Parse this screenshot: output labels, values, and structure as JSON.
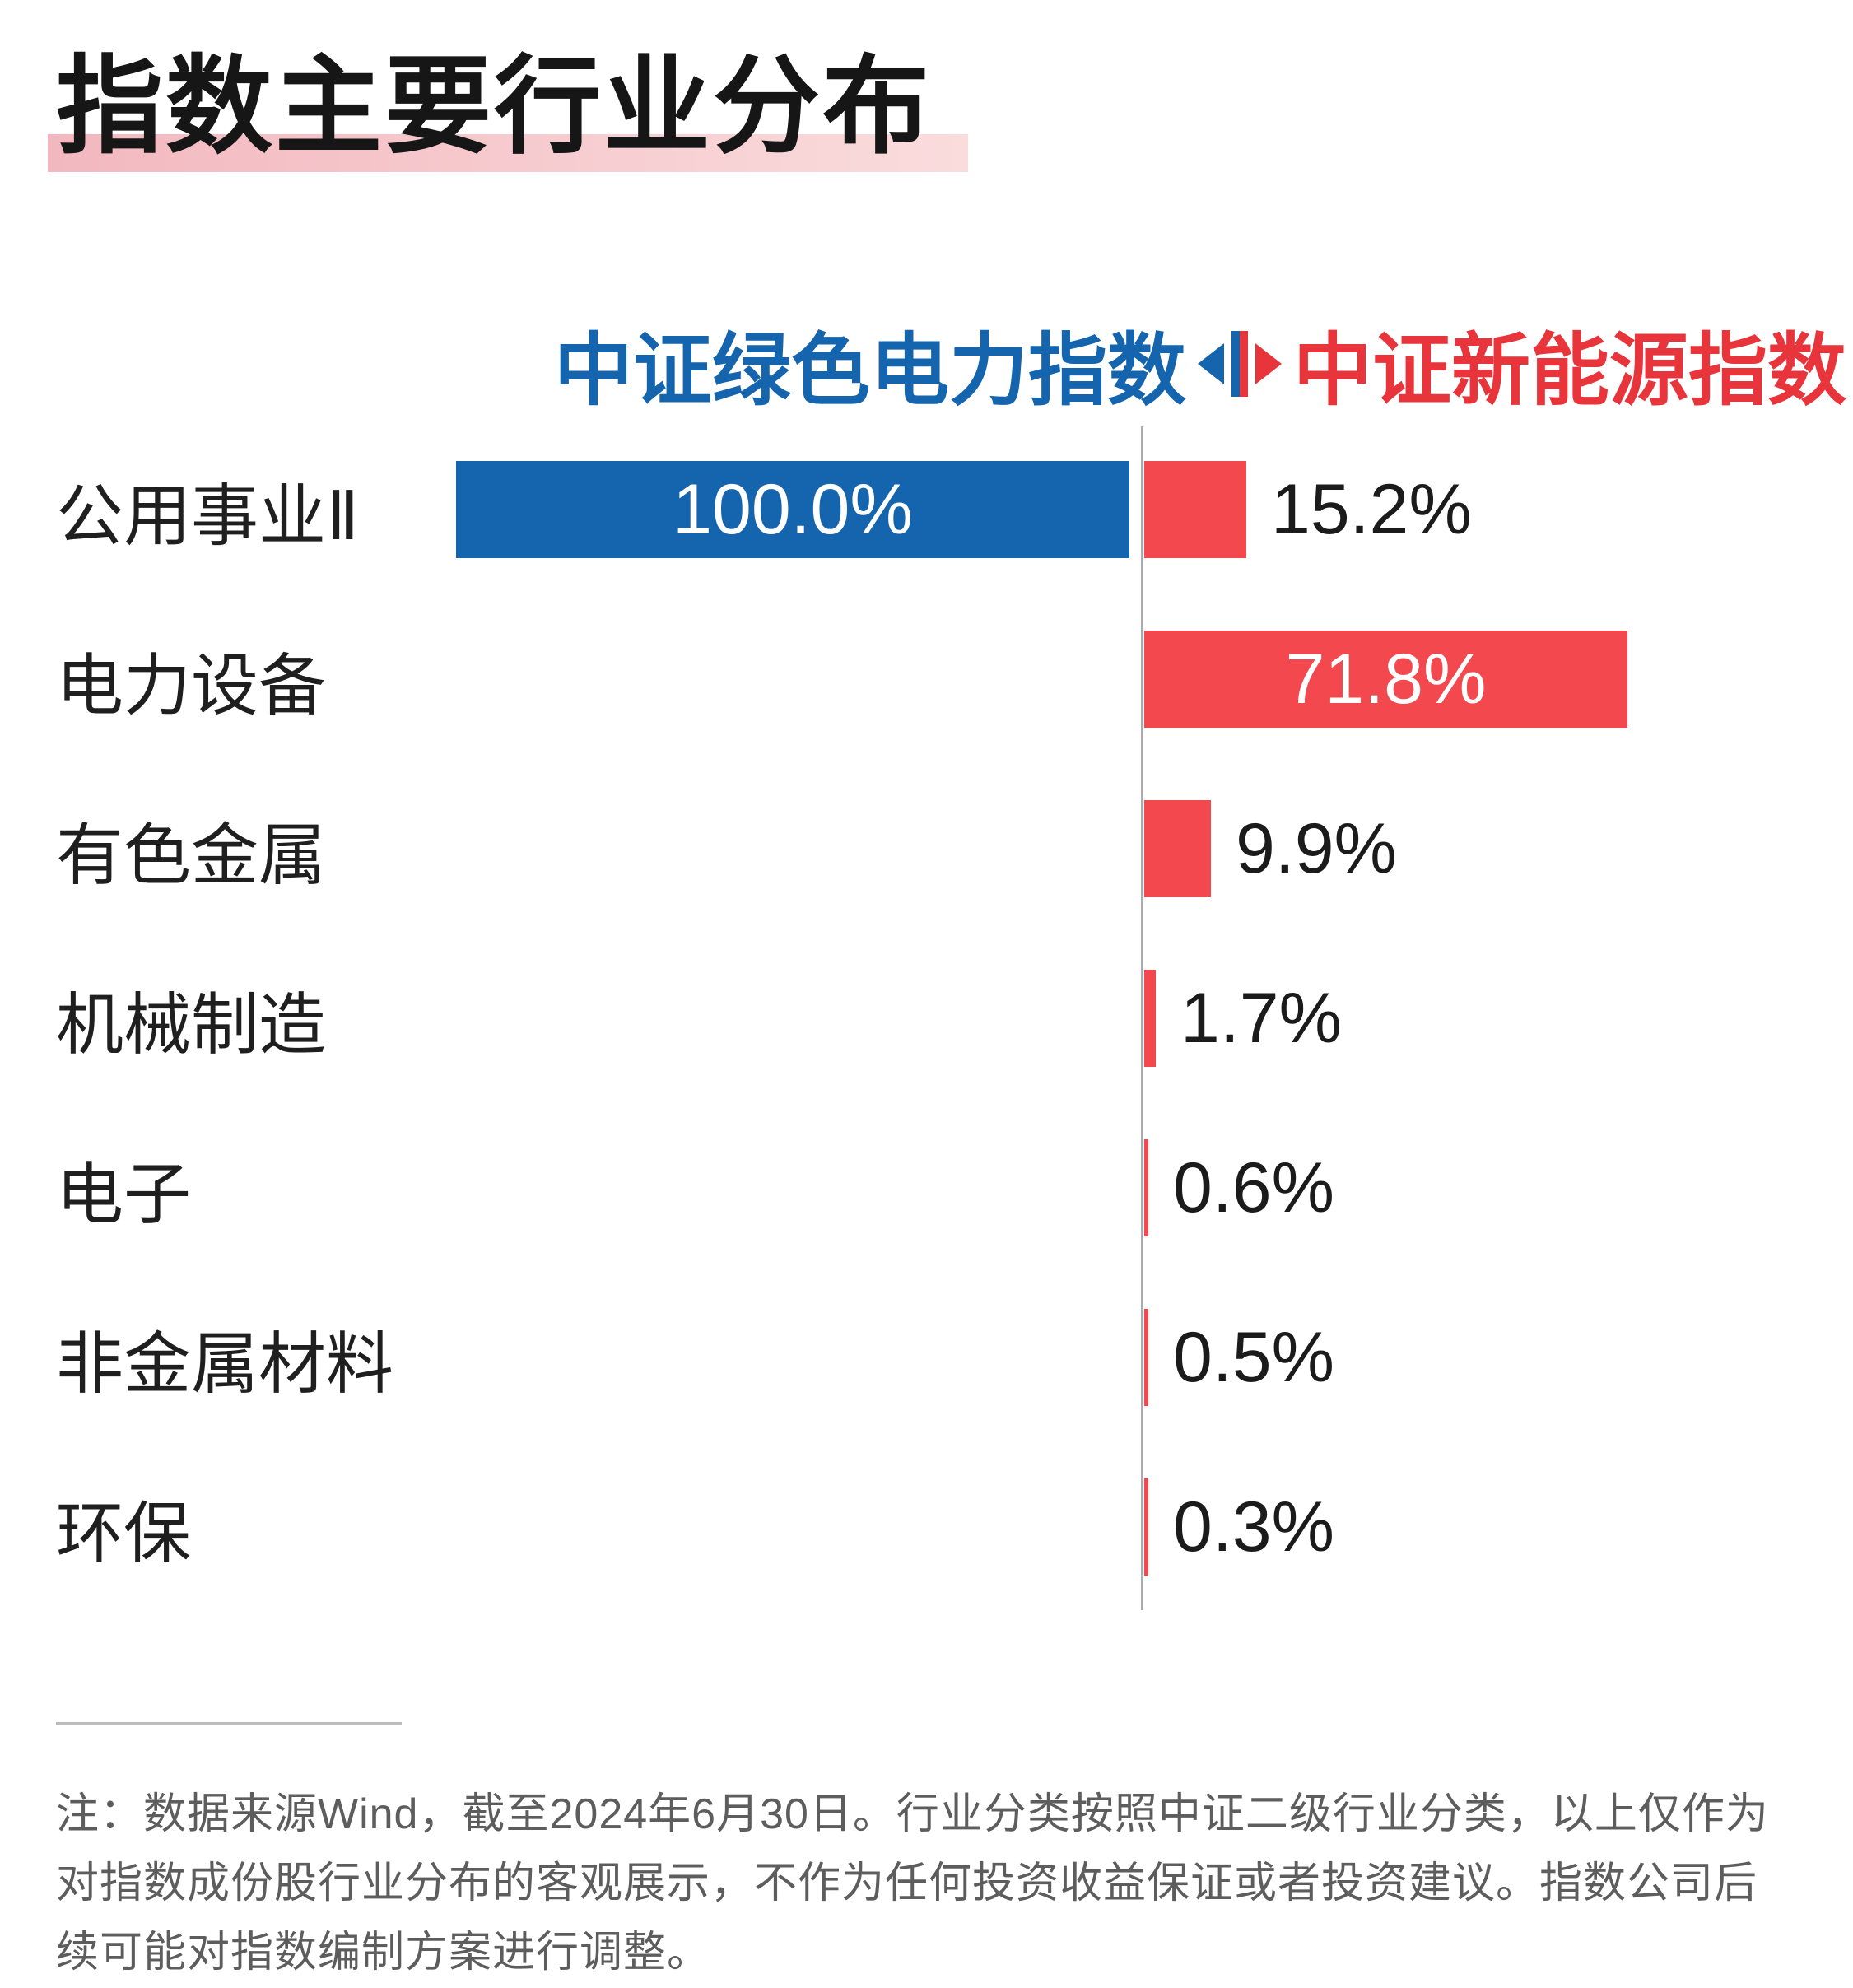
{
  "page": {
    "title": "指数主要行业分布",
    "note": "注：数据来源Wind，截至2024年6月30日。行业分类按照中证二级行业分类，以上仅作为对指数成份股行业分布的客观展示，不作为任何投资收益保证或者投资建议。指数公司后续可能对指数编制方案进行调整。"
  },
  "legend": {
    "left_label": "中证绿色电力指数",
    "right_label": "中证新能源指数"
  },
  "colors": {
    "left_bar": "#1464ae",
    "right_bar": "#f2484e",
    "right_text": "#e8343b",
    "title_underline_start": "#f2b8bf",
    "title_underline_end": "#fadcdd",
    "axis": "#ababab",
    "note_text": "#5d5d5d"
  },
  "chart_data": {
    "type": "bar",
    "orientation": "horizontal-diverging",
    "title": "指数主要行业分布",
    "categories": [
      "公用事业Ⅱ",
      "电力设备",
      "有色金属",
      "机械制造",
      "电子",
      "非金属材料",
      "环保"
    ],
    "series": [
      {
        "name": "中证绿色电力指数",
        "side": "left",
        "color": "#1464ae",
        "values": [
          100.0,
          null,
          null,
          null,
          null,
          null,
          null
        ]
      },
      {
        "name": "中证新能源指数",
        "side": "right",
        "color": "#f2484e",
        "values": [
          15.2,
          71.8,
          9.9,
          1.7,
          0.6,
          0.5,
          0.3
        ]
      }
    ],
    "value_labels": {
      "left": [
        "100.0%",
        null,
        null,
        null,
        null,
        null,
        null
      ],
      "right": [
        "15.2%",
        "71.8%",
        "9.9%",
        "1.7%",
        "0.6%",
        "0.5%",
        "0.3%"
      ]
    },
    "value_suffix": "%",
    "xlim_percent": [
      0,
      100
    ],
    "axis_style": "center-vertical-line",
    "legend_position": "top",
    "grid": false
  }
}
